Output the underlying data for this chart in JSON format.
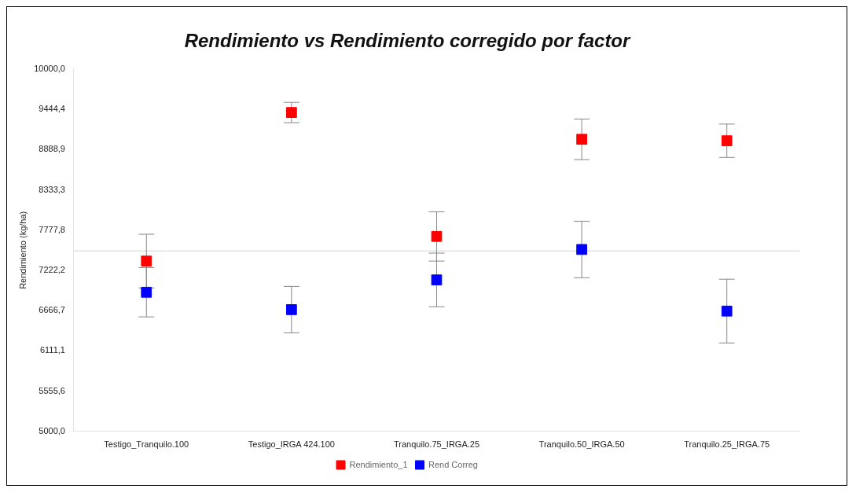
{
  "chart_data": {
    "type": "scatter",
    "title": "Rendimiento vs Rendimiento corregido por factor",
    "ylabel": "Rendimiento (kg/ha)",
    "categories": [
      "Testigo_Tranquilo.100",
      "Testigo_IRGA 424.100",
      "Tranquilo.75_IRGA.25",
      "Tranquilo.50_IRGA.50",
      "Tranquilo.25_IRGA.75"
    ],
    "series": [
      {
        "name": "Rendimiento_1",
        "color": "#ff0000",
        "values": [
          7350,
          9400,
          7690,
          9030,
          9010
        ],
        "errors": [
          370,
          140,
          340,
          280,
          230
        ]
      },
      {
        "name": "Rend Correg",
        "color": "#0000ff",
        "values": [
          6920,
          6680,
          7090,
          7510,
          6660
        ],
        "errors": [
          340,
          320,
          370,
          390,
          440
        ]
      }
    ],
    "ylim": [
      5000,
      10000
    ],
    "yticks": [
      {
        "value": 5000,
        "label": "5000,0"
      },
      {
        "value": 5555.6,
        "label": "5555,6"
      },
      {
        "value": 6111.1,
        "label": "6111,1"
      },
      {
        "value": 6666.7,
        "label": "6666,7"
      },
      {
        "value": 7222.2,
        "label": "7222,2"
      },
      {
        "value": 7777.8,
        "label": "7777,8"
      },
      {
        "value": 8333.3,
        "label": "8333,3"
      },
      {
        "value": 8888.9,
        "label": "8888,9"
      },
      {
        "value": 9444.4,
        "label": "9444,4"
      },
      {
        "value": 10000,
        "label": "10000,0"
      }
    ],
    "ref_lines": [
      {
        "axis": "y",
        "value": 7490,
        "color": "#e0e0e0"
      }
    ],
    "marker": "square",
    "legend": "bottom",
    "grid": false
  }
}
